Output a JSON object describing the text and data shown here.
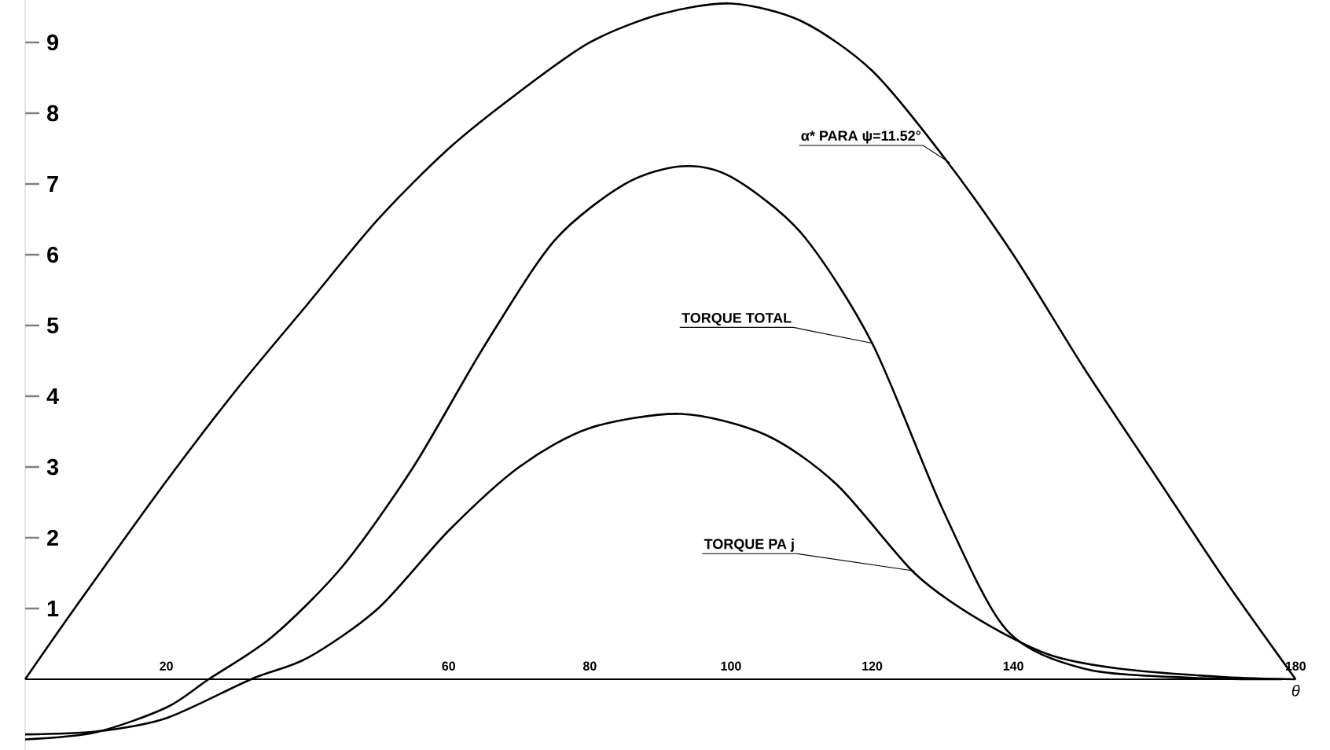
{
  "chart_data": {
    "type": "line",
    "xlabel": "θ",
    "xlim": [
      0,
      180
    ],
    "ylim": [
      -1,
      9.6
    ],
    "xticks": [
      20,
      60,
      80,
      100,
      120,
      140,
      180
    ],
    "yticks": [
      1,
      2,
      3,
      4,
      5,
      6,
      7,
      8,
      9
    ],
    "grid": false,
    "marker": "none",
    "line_style": "solid",
    "series": [
      {
        "color": "#000000",
        "x": [
          0,
          7,
          20,
          30,
          40,
          50,
          60,
          70,
          80,
          90,
          100,
          110,
          120,
          130,
          140,
          150,
          160,
          170,
          180
        ],
        "values": [
          0,
          1,
          2.8,
          4.1,
          5.3,
          6.5,
          7.5,
          8.3,
          9.0,
          9.4,
          9.55,
          9.3,
          8.6,
          7.4,
          6.0,
          4.4,
          2.9,
          1.4,
          0
        ]
      },
      {
        "color": "#000000",
        "x": [
          0,
          10,
          20,
          26,
          35,
          45,
          55,
          65,
          75,
          85,
          93,
          100,
          110,
          120,
          130,
          139,
          150,
          165,
          178
        ],
        "values": [
          -0.85,
          -0.75,
          -0.4,
          0,
          0.6,
          1.6,
          3.0,
          4.7,
          6.2,
          7.0,
          7.25,
          7.1,
          6.3,
          4.75,
          2.4,
          0.7,
          0.15,
          0.02,
          0
        ]
      },
      {
        "color": "#000000",
        "x": [
          0,
          10,
          20,
          32,
          40,
          50,
          60,
          70,
          80,
          93,
          105,
          115,
          126,
          135,
          145,
          155,
          170,
          180
        ],
        "values": [
          -0.78,
          -0.74,
          -0.55,
          0,
          0.3,
          1.0,
          2.1,
          3.0,
          3.55,
          3.75,
          3.45,
          2.75,
          1.5,
          0.85,
          0.35,
          0.15,
          0.03,
          0
        ]
      }
    ],
    "annotations": [
      {
        "text": "α* PARA ψ=11.52°",
        "x": 131,
        "y": 7.3
      },
      {
        "text": "TORQUE TOTAL",
        "x": 120,
        "y": 4.75
      },
      {
        "text": "TORQUE PA j",
        "x": 126,
        "y": 1.53
      }
    ]
  }
}
